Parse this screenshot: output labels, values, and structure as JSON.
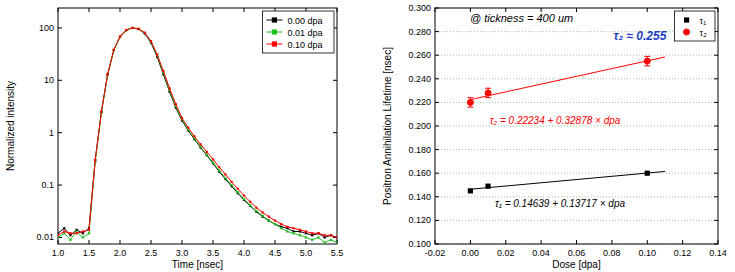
{
  "chart_data": [
    {
      "type": "line",
      "x_label": "Time [nsec]",
      "y_label": "Normalized intensity",
      "x": [
        1.0,
        1.1,
        1.2,
        1.3,
        1.4,
        1.5,
        1.6,
        1.7,
        1.8,
        1.9,
        2.0,
        2.1,
        2.2,
        2.3,
        2.4,
        2.5,
        2.6,
        2.7,
        2.8,
        2.9,
        3.0,
        3.1,
        3.2,
        3.3,
        3.4,
        3.5,
        3.6,
        3.7,
        3.8,
        3.9,
        4.0,
        4.1,
        4.2,
        4.3,
        4.4,
        4.5,
        4.6,
        4.7,
        4.8,
        4.9,
        5.0,
        5.1,
        5.2,
        5.3,
        5.4,
        5.5
      ],
      "series": [
        {
          "name": "0.00 dpa",
          "color": "#000000",
          "marker": "square",
          "values": [
            0.012,
            0.015,
            0.011,
            0.014,
            0.012,
            0.015,
            0.3,
            2.5,
            13,
            38,
            68,
            91,
            100,
            95,
            78,
            52,
            28,
            13,
            6,
            3,
            1.7,
            1.1,
            0.75,
            0.52,
            0.37,
            0.26,
            0.18,
            0.13,
            0.095,
            0.07,
            0.052,
            0.04,
            0.031,
            0.025,
            0.021,
            0.018,
            0.016,
            0.015,
            0.013,
            0.013,
            0.012,
            0.011,
            0.012,
            0.01,
            0.011,
            0.01
          ]
        },
        {
          "name": "0.01 dpa",
          "color": "#22c022",
          "marker": "square",
          "values": [
            0.01,
            0.012,
            0.009,
            0.013,
            0.01,
            0.012,
            0.28,
            2.4,
            12.5,
            37,
            67,
            90,
            100,
            96,
            80,
            54,
            30,
            14,
            6.5,
            3.2,
            1.8,
            1.15,
            0.78,
            0.54,
            0.38,
            0.27,
            0.19,
            0.135,
            0.1,
            0.073,
            0.054,
            0.041,
            0.032,
            0.026,
            0.021,
            0.018,
            0.015,
            0.013,
            0.012,
            0.011,
            0.01,
            0.009,
            0.01,
            0.008,
            0.009,
            0.008
          ]
        },
        {
          "name": "0.10 dpa",
          "color": "#ff0000",
          "marker": "square",
          "values": [
            0.011,
            0.013,
            0.012,
            0.012,
            0.013,
            0.014,
            0.3,
            2.5,
            13,
            38,
            68,
            91,
            100,
            96,
            81,
            56,
            31,
            15,
            7,
            3.5,
            1.9,
            1.25,
            0.85,
            0.6,
            0.43,
            0.31,
            0.22,
            0.16,
            0.115,
            0.085,
            0.063,
            0.048,
            0.037,
            0.03,
            0.025,
            0.021,
            0.018,
            0.016,
            0.015,
            0.014,
            0.013,
            0.012,
            0.012,
            0.011,
            0.011,
            0.01
          ]
        }
      ],
      "xlim": [
        1.0,
        5.5
      ],
      "xticks": [
        {
          "value": 1,
          "label": "1.0"
        },
        1.5,
        {
          "value": 2,
          "label": "2.0"
        },
        2.5,
        {
          "value": 3,
          "label": "3.0"
        },
        3.5,
        {
          "value": 4,
          "label": "4.0"
        },
        4.5,
        {
          "value": 5,
          "label": "5.0"
        },
        5.5
      ],
      "ylim": [
        0.0075,
        240
      ],
      "yticks": [
        0.01,
        0.1,
        1,
        10,
        100
      ],
      "log": "y",
      "grid": false,
      "legend": "upper right"
    },
    {
      "type": "scatter",
      "x_label": "Dose [dpa]",
      "y_label": "Positron Annihilation Lifetime [nsec]",
      "annotations": [
        {
          "text": "@ tickness = 400 um",
          "color": "#000000"
        },
        {
          "text": "τ₂ ≈ 0.255",
          "color": "#1f3fbf"
        },
        {
          "text": "τ₂ = 0.22234 + 0.32878 × dpa",
          "color": "#ff0000"
        },
        {
          "text": "τ₁ = 0.14639 + 0.13717 × dpa",
          "color": "#000000"
        }
      ],
      "series": [
        {
          "name": "τ₁",
          "color": "#000000",
          "marker": "square",
          "x": [
            0,
            0.01,
            0.1
          ],
          "values": [
            0.145,
            0.149,
            0.16
          ]
        },
        {
          "name": "τ₂",
          "color": "#ff0000",
          "marker": "circle",
          "x": [
            0,
            0.01,
            0.1
          ],
          "values": [
            0.22,
            0.228,
            0.255
          ],
          "errors": [
            0.004,
            0.004,
            0.004
          ]
        },
        {
          "type": "line",
          "color": "#ff0000",
          "x": [
            0,
            0.11
          ],
          "values": [
            0.22234,
            0.25851
          ]
        },
        {
          "type": "line",
          "color": "#000000",
          "x": [
            0,
            0.11
          ],
          "values": [
            0.14639,
            0.16148
          ]
        }
      ],
      "xlim": [
        -0.02,
        0.14
      ],
      "xticks": [
        -0.02,
        {
          "value": 0,
          "label": "0.00"
        },
        0.02,
        0.04,
        0.06,
        0.08,
        {
          "value": 0.1,
          "label": "0.10"
        },
        0.12,
        0.14
      ],
      "ylim": [
        0.1,
        0.3
      ],
      "yticks": [
        {
          "value": 0.1,
          "label": "0.100"
        },
        {
          "value": 0.12,
          "label": "0.120"
        },
        {
          "value": 0.14,
          "label": "0.140"
        },
        {
          "value": 0.16,
          "label": "0.160"
        },
        {
          "value": 0.18,
          "label": "0.180"
        },
        {
          "value": 0.2,
          "label": "0.200"
        },
        {
          "value": 0.22,
          "label": "0.220"
        },
        {
          "value": 0.24,
          "label": "0.240"
        },
        {
          "value": 0.26,
          "label": "0.260"
        },
        {
          "value": 0.28,
          "label": "0.280"
        },
        {
          "value": 0.3,
          "label": "0.300"
        }
      ],
      "grid": true,
      "legend": "upper right"
    }
  ]
}
